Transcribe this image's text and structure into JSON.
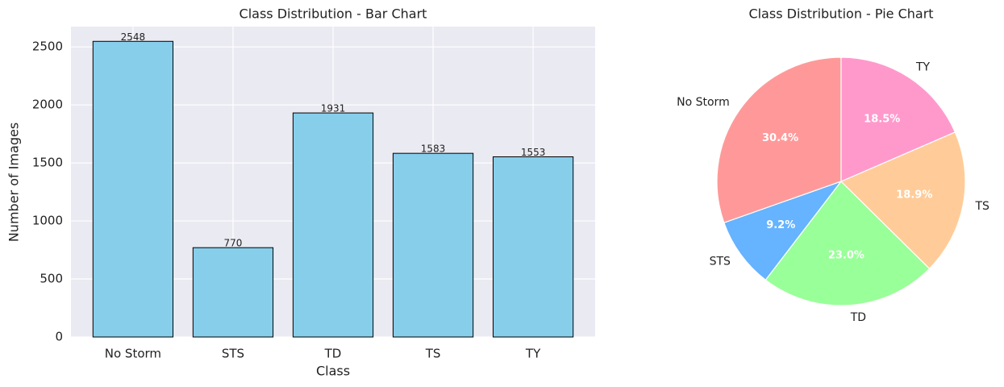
{
  "chart_data": [
    {
      "type": "bar",
      "title": "Class Distribution - Bar Chart",
      "x_label": "Class",
      "y_label": "Number of Images",
      "categories": [
        "No Storm",
        "STS",
        "TD",
        "TS",
        "TY"
      ],
      "values": [
        2548,
        770,
        1931,
        1583,
        1553
      ],
      "color": "#87ceeb",
      "edge_color": "#000000",
      "ylim": [
        0,
        2675
      ],
      "yticks": [
        0,
        500,
        1000,
        1500,
        2000,
        2500
      ],
      "grid": true
    },
    {
      "type": "pie",
      "title": "Class Distribution - Pie Chart",
      "categories": [
        "No Storm",
        "STS",
        "TD",
        "TS",
        "TY"
      ],
      "values": [
        30.4,
        9.2,
        23.0,
        18.9,
        18.5
      ],
      "value_labels": [
        "30.4%",
        "9.2%",
        "23.0%",
        "18.9%",
        "18.5%"
      ],
      "colors": [
        "#ff9999",
        "#66b3ff",
        "#99ff99",
        "#ffcc99",
        "#ff99cc"
      ]
    }
  ]
}
